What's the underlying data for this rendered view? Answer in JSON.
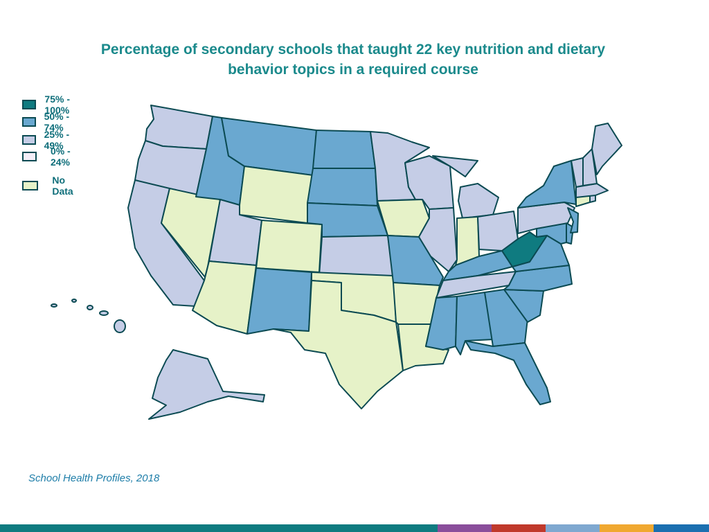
{
  "title_line1": "Percentage of secondary schools that taught 22 key nutrition and dietary",
  "title_line2": "behavior topics in a required course",
  "legend": [
    {
      "label": "75% - 100%",
      "color": "#0f7b80"
    },
    {
      "label": "50% - 74%",
      "color": "#6aa8d0"
    },
    {
      "label": "25% - 49%",
      "color": "#c5cde6"
    },
    {
      "label": "0% - 24%",
      "color": "#f4eef8"
    },
    {
      "label": "No Data",
      "color": "#e6f2c8"
    }
  ],
  "source": "School Health Profiles, 2018",
  "category_colors": {
    "c75_100": "#0f7b80",
    "c50_74": "#6aa8d0",
    "c25_49": "#c5cde6",
    "c0_24": "#f4eef8",
    "no_data": "#e6f2c8",
    "border": "#0b4a52"
  },
  "states": {
    "WA": "25% - 49%",
    "OR": "25% - 49%",
    "CA": "25% - 49%",
    "NV": "No Data",
    "ID": "50% - 74%",
    "MT": "50% - 74%",
    "WY": "No Data",
    "UT": "25% - 49%",
    "AZ": "No Data",
    "CO": "No Data",
    "NM": "50% - 74%",
    "ND": "50% - 74%",
    "SD": "50% - 74%",
    "NE": "50% - 74%",
    "KS": "25% - 49%",
    "OK": "No Data",
    "TX": "No Data",
    "MN": "25% - 49%",
    "IA": "No Data",
    "MO": "50% - 74%",
    "AR": "No Data",
    "LA": "No Data",
    "WI": "25% - 49%",
    "IL": "25% - 49%",
    "MI": "25% - 49%",
    "IN": "No Data",
    "OH": "25% - 49%",
    "KY": "50% - 74%",
    "TN": "25% - 49%",
    "MS": "50% - 74%",
    "AL": "50% - 74%",
    "GA": "50% - 74%",
    "FL": "50% - 74%",
    "SC": "50% - 74%",
    "NC": "50% - 74%",
    "VA": "50% - 74%",
    "WV": "75% - 100%",
    "MD": "50% - 74%",
    "DE": "50% - 74%",
    "PA": "25% - 49%",
    "NJ": "50% - 74%",
    "NY": "50% - 74%",
    "CT": "No Data",
    "RI": "25% - 49%",
    "MA": "25% - 49%",
    "VT": "25% - 49%",
    "NH": "25% - 49%",
    "ME": "25% - 49%",
    "AK": "25% - 49%",
    "HI": "25% - 49%"
  },
  "bottom_bar_colors": [
    "#0f7b80",
    "#8a4e9b",
    "#c0392b",
    "#7fa8d0",
    "#f0a830",
    "#1b6fb0"
  ]
}
